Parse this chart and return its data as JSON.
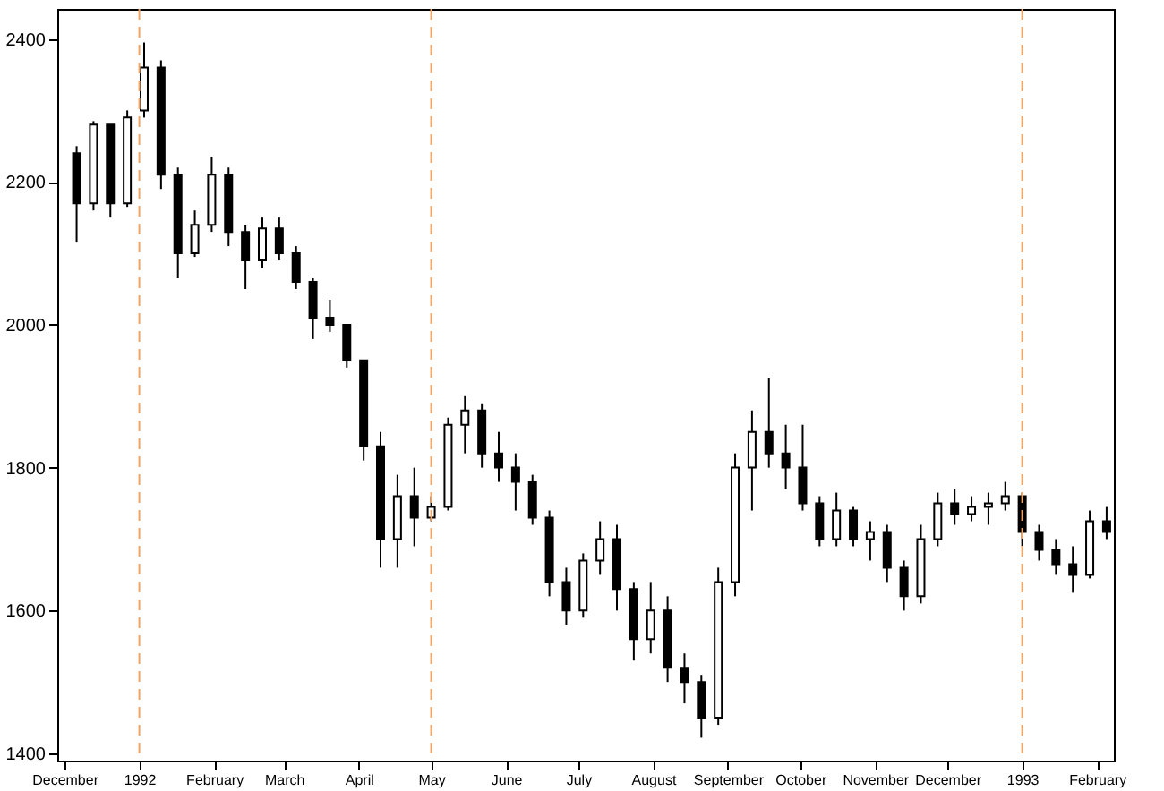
{
  "chart_data": {
    "type": "candlestick",
    "x": [
      "1991-12-06",
      "1991-12-13",
      "1991-12-20",
      "1991-12-27",
      "1992-01-03",
      "1992-01-10",
      "1992-01-17",
      "1992-01-24",
      "1992-01-31",
      "1992-02-07",
      "1992-02-14",
      "1992-02-21",
      "1992-02-28",
      "1992-03-06",
      "1992-03-13",
      "1992-03-20",
      "1992-03-27",
      "1992-04-03",
      "1992-04-10",
      "1992-04-17",
      "1992-04-24",
      "1992-05-01",
      "1992-05-08",
      "1992-05-15",
      "1992-05-22",
      "1992-05-29",
      "1992-06-05",
      "1992-06-12",
      "1992-06-19",
      "1992-06-26",
      "1992-07-03",
      "1992-07-10",
      "1992-07-17",
      "1992-07-24",
      "1992-07-31",
      "1992-08-07",
      "1992-08-14",
      "1992-08-21",
      "1992-08-28",
      "1992-09-04",
      "1992-09-11",
      "1992-09-18",
      "1992-09-25",
      "1992-10-02",
      "1992-10-09",
      "1992-10-16",
      "1992-10-23",
      "1992-10-30",
      "1992-11-06",
      "1992-11-13",
      "1992-11-20",
      "1992-11-27",
      "1992-12-04",
      "1992-12-11",
      "1992-12-18",
      "1992-12-25",
      "1993-01-01",
      "1993-01-08",
      "1993-01-15",
      "1993-01-22",
      "1993-01-29",
      "1993-02-05"
    ],
    "ohlc": [
      [
        2240,
        2250,
        2115,
        2170
      ],
      [
        2170,
        2285,
        2160,
        2280
      ],
      [
        2280,
        2280,
        2150,
        2170
      ],
      [
        2170,
        2300,
        2165,
        2290
      ],
      [
        2300,
        2395,
        2290,
        2360
      ],
      [
        2360,
        2370,
        2190,
        2210
      ],
      [
        2210,
        2220,
        2065,
        2100
      ],
      [
        2100,
        2160,
        2095,
        2140
      ],
      [
        2140,
        2235,
        2130,
        2210
      ],
      [
        2210,
        2220,
        2110,
        2130
      ],
      [
        2130,
        2140,
        2050,
        2090
      ],
      [
        2090,
        2150,
        2080,
        2135
      ],
      [
        2135,
        2150,
        2090,
        2100
      ],
      [
        2100,
        2110,
        2050,
        2060
      ],
      [
        2060,
        2065,
        1980,
        2010
      ],
      [
        2010,
        2035,
        1990,
        2000
      ],
      [
        2000,
        2000,
        1940,
        1950
      ],
      [
        1950,
        1950,
        1810,
        1830
      ],
      [
        1830,
        1850,
        1660,
        1700
      ],
      [
        1700,
        1790,
        1660,
        1760
      ],
      [
        1760,
        1800,
        1690,
        1730
      ],
      [
        1730,
        1760,
        1725,
        1745
      ],
      [
        1745,
        1870,
        1740,
        1860
      ],
      [
        1860,
        1900,
        1820,
        1880
      ],
      [
        1880,
        1890,
        1800,
        1820
      ],
      [
        1820,
        1850,
        1780,
        1800
      ],
      [
        1800,
        1820,
        1740,
        1780
      ],
      [
        1780,
        1790,
        1720,
        1730
      ],
      [
        1730,
        1740,
        1620,
        1640
      ],
      [
        1640,
        1660,
        1580,
        1600
      ],
      [
        1600,
        1680,
        1590,
        1670
      ],
      [
        1670,
        1725,
        1650,
        1700
      ],
      [
        1700,
        1720,
        1600,
        1630
      ],
      [
        1630,
        1640,
        1530,
        1560
      ],
      [
        1560,
        1640,
        1540,
        1600
      ],
      [
        1600,
        1620,
        1500,
        1520
      ],
      [
        1520,
        1540,
        1470,
        1500
      ],
      [
        1500,
        1510,
        1422,
        1450
      ],
      [
        1450,
        1660,
        1440,
        1640
      ],
      [
        1640,
        1820,
        1620,
        1800
      ],
      [
        1800,
        1880,
        1740,
        1850
      ],
      [
        1850,
        1925,
        1800,
        1820
      ],
      [
        1820,
        1860,
        1770,
        1800
      ],
      [
        1800,
        1860,
        1740,
        1750
      ],
      [
        1750,
        1760,
        1690,
        1700
      ],
      [
        1700,
        1765,
        1690,
        1740
      ],
      [
        1740,
        1745,
        1690,
        1700
      ],
      [
        1700,
        1725,
        1670,
        1710
      ],
      [
        1710,
        1720,
        1640,
        1660
      ],
      [
        1660,
        1670,
        1600,
        1620
      ],
      [
        1620,
        1720,
        1610,
        1700
      ],
      [
        1700,
        1765,
        1690,
        1750
      ],
      [
        1750,
        1770,
        1720,
        1735
      ],
      [
        1735,
        1760,
        1725,
        1745
      ],
      [
        1745,
        1765,
        1720,
        1750
      ],
      [
        1750,
        1780,
        1740,
        1760
      ],
      [
        1760,
        1765,
        1690,
        1710
      ],
      [
        1710,
        1720,
        1670,
        1685
      ],
      [
        1685,
        1700,
        1650,
        1665
      ],
      [
        1665,
        1690,
        1625,
        1650
      ],
      [
        1650,
        1740,
        1645,
        1725
      ],
      [
        1725,
        1745,
        1700,
        1710
      ]
    ],
    "xlim": [
      "1991-11-28",
      "1993-02-08"
    ],
    "xticks": [
      {
        "value": "1991-12-01",
        "label": "December"
      },
      {
        "value": "1992-01-01",
        "label": "1992"
      },
      {
        "value": "1992-02-01",
        "label": "February"
      },
      {
        "value": "1992-03-01",
        "label": "March"
      },
      {
        "value": "1992-04-01",
        "label": "April"
      },
      {
        "value": "1992-05-01",
        "label": "May"
      },
      {
        "value": "1992-06-01",
        "label": "June"
      },
      {
        "value": "1992-07-01",
        "label": "July"
      },
      {
        "value": "1992-08-01",
        "label": "August"
      },
      {
        "value": "1992-09-01",
        "label": "September"
      },
      {
        "value": "1992-10-01",
        "label": "October"
      },
      {
        "value": "1992-11-01",
        "label": "November"
      },
      {
        "value": "1992-12-01",
        "label": "December"
      },
      {
        "value": "1993-01-01",
        "label": "1993"
      },
      {
        "value": "1993-02-01",
        "label": "February"
      }
    ],
    "ylim": [
      1390,
      2442
    ],
    "yticks": [
      1400,
      1600,
      1800,
      2000,
      2200,
      2400
    ],
    "ref_lines": [
      {
        "axis": "x",
        "value": "1992-01-01",
        "color": "#f4a460",
        "line_style": "dashed"
      },
      {
        "axis": "x",
        "value": "1992-05-01",
        "color": "#f4a460",
        "line_style": "dashed"
      },
      {
        "axis": "x",
        "value": "1993-01-01",
        "color": "#f4a460",
        "line_style": "dashed"
      }
    ]
  }
}
